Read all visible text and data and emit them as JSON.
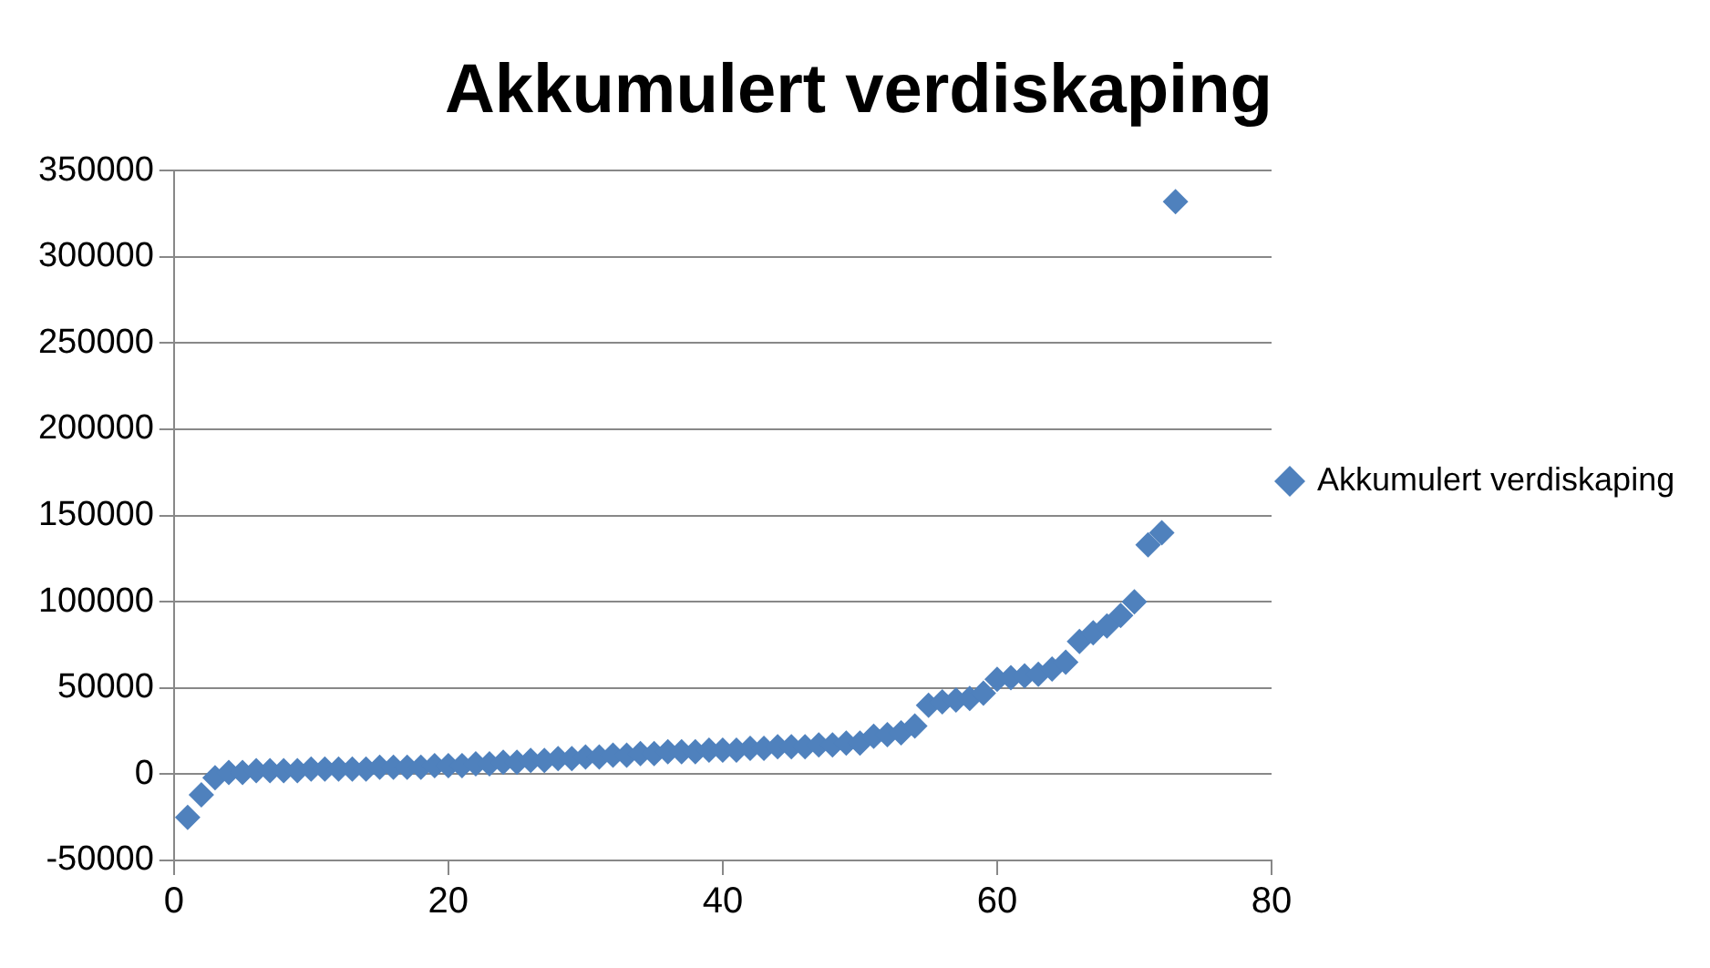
{
  "chart_data": {
    "type": "scatter",
    "title": "Akkumulert verdiskaping",
    "x": [
      1,
      2,
      3,
      4,
      5,
      6,
      7,
      8,
      9,
      10,
      11,
      12,
      13,
      14,
      15,
      16,
      17,
      18,
      19,
      20,
      21,
      22,
      23,
      24,
      25,
      26,
      27,
      28,
      29,
      30,
      31,
      32,
      33,
      34,
      35,
      36,
      37,
      38,
      39,
      40,
      41,
      42,
      43,
      44,
      45,
      46,
      47,
      48,
      49,
      50,
      51,
      52,
      53,
      54,
      55,
      56,
      57,
      58,
      59,
      60,
      61,
      62,
      63,
      64,
      65,
      66,
      67,
      68,
      69,
      70,
      71,
      72,
      73
    ],
    "series": [
      {
        "name": "Akkumulert verdiskaping",
        "color": "#4f81bd",
        "values": [
          -25000,
          -12000,
          -2000,
          1000,
          1000,
          2000,
          2000,
          2000,
          2000,
          3000,
          3000,
          3000,
          3000,
          3000,
          4000,
          4000,
          4000,
          4000,
          5000,
          5000,
          5000,
          6000,
          6000,
          7000,
          7000,
          8000,
          8000,
          9000,
          9000,
          10000,
          10000,
          11000,
          11000,
          12000,
          12000,
          13000,
          13000,
          13000,
          14000,
          14000,
          14000,
          15000,
          15000,
          16000,
          16000,
          16000,
          17000,
          17000,
          18000,
          18000,
          22000,
          23000,
          24000,
          28000,
          40000,
          42000,
          43000,
          44000,
          47000,
          55000,
          56000,
          57000,
          58000,
          61000,
          65000,
          77000,
          82000,
          86000,
          92000,
          100000,
          133000,
          140000,
          332000
        ]
      }
    ],
    "xlim": [
      0,
      80
    ],
    "xticks": [
      0,
      20,
      40,
      60,
      80
    ],
    "ylim": [
      -50000,
      350000
    ],
    "yticks": [
      -50000,
      0,
      50000,
      100000,
      150000,
      200000,
      250000,
      300000,
      350000
    ],
    "grid": "y",
    "legend": "right",
    "marker": "diamond"
  }
}
